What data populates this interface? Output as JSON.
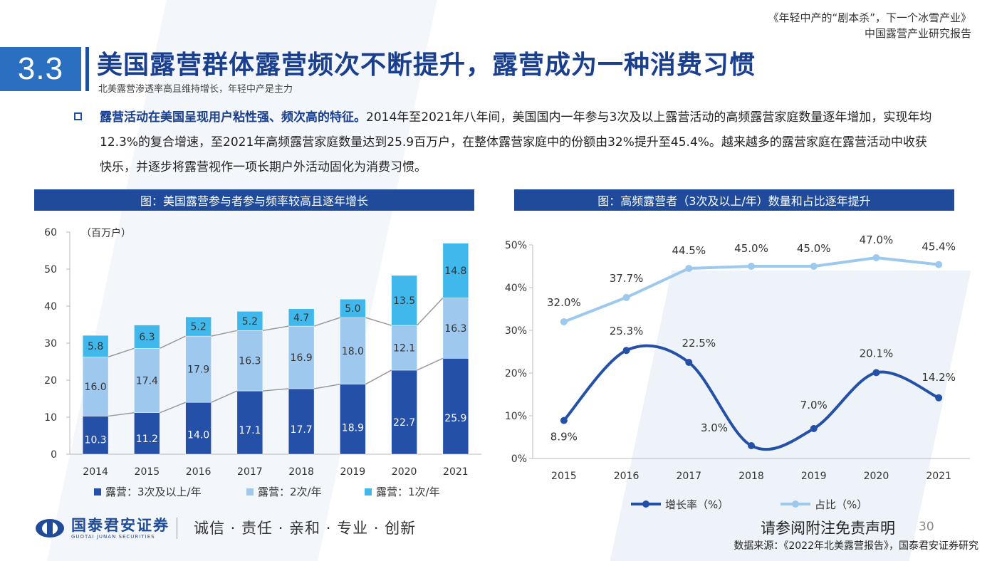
{
  "header": {
    "report_line1": "《年轻中产的“剧本杀”，下一个冰雪产业》",
    "report_line2": "中国露营产业研究报告"
  },
  "section_number": "3.3",
  "title": "美国露营群体露营频次不断提升，露营成为一种消费习惯",
  "subtitle": "北美露营渗透率高且维持增长，年轻中产是主力",
  "paragraph": {
    "emphasis": "露营活动在美国呈现用户粘性强、频次高的特征。",
    "body": "2014年至2021年八年间，美国国内一年参与3次及以上露营活动的高频露营家庭数量逐年增加，实现年均12.3%的复合增速，至2021年高频露营家庭数量达到25.9百万户，在整体露营家庭中的份额由32%提升至45.4%。越来越多的露营家庭在露营活动中收获快乐，并逐步将露营视作一项长期户外活动固化为消费习惯。"
  },
  "colors": {
    "brand_blue": "#1f4b9a",
    "series_dark": "#2550a8",
    "series_mid": "#9fc8ee",
    "series_light": "#40b8ec",
    "line_light": "#9ec9ee"
  },
  "chart_data": [
    {
      "type": "bar",
      "stacked": true,
      "title": "图：美国露营参与者参与频率较高且逐年增长",
      "unit_label": "（百万户）",
      "categories": [
        "2014",
        "2015",
        "2016",
        "2017",
        "2018",
        "2019",
        "2020",
        "2021"
      ],
      "series": [
        {
          "name": "露营：3次及以上/年",
          "values": [
            10.3,
            11.2,
            14.0,
            17.1,
            17.7,
            18.9,
            22.7,
            25.9
          ],
          "labels": [
            "10.3",
            "11.2",
            "14.0",
            "17.1",
            "17.7",
            "18.9",
            "22.7",
            "25.9"
          ]
        },
        {
          "name": "露营：2次/年",
          "values": [
            16.0,
            17.4,
            17.9,
            16.3,
            16.9,
            18.0,
            12.1,
            16.3
          ],
          "labels": [
            "16.0",
            "17.4",
            "17.9",
            "16.3",
            "16.9",
            "18.0",
            "12.1",
            "16.3"
          ]
        },
        {
          "name": "露营：1次/年",
          "values": [
            5.8,
            6.3,
            5.2,
            5.2,
            4.7,
            5.0,
            13.5,
            14.8
          ],
          "labels": [
            "5.8",
            "6.3",
            "5.2",
            "5.2",
            "4.7",
            "5.0",
            "13.5",
            "14.8"
          ]
        }
      ],
      "ylim": [
        0,
        60
      ],
      "yticks": [
        "0",
        "10",
        "20",
        "30",
        "40",
        "50",
        "60"
      ],
      "legend_position": "bottom"
    },
    {
      "type": "line",
      "title": "图：高频露营者（3次及以上/年）数量和占比逐年提升",
      "categories": [
        "2015",
        "2016",
        "2017",
        "2018",
        "2019",
        "2020",
        "2021"
      ],
      "series": [
        {
          "name": "增长率（%）",
          "values": [
            8.9,
            25.3,
            22.5,
            3.0,
            7.0,
            20.1,
            14.2
          ],
          "labels": [
            "8.9%",
            "25.3%",
            "22.5%",
            "3.0%",
            "7.0%",
            "20.1%",
            "14.2%"
          ]
        },
        {
          "name": "占比（%）",
          "values": [
            32.0,
            37.7,
            44.5,
            45.0,
            45.0,
            47.0,
            45.4
          ],
          "labels": [
            "32.0%",
            "37.7%",
            "44.5%",
            "45.0%",
            "45.0%",
            "47.0%",
            "45.4%"
          ]
        }
      ],
      "ylim": [
        0,
        50
      ],
      "yticks": [
        "0%",
        "10%",
        "20%",
        "30%",
        "40%",
        "50%"
      ],
      "legend_position": "bottom"
    }
  ],
  "footer": {
    "company": "国泰君安证券",
    "company_en": "GUOTAI JUNAN SECURITIES",
    "slogan": "诚信 · 责任 · 亲和 · 专业 · 创新",
    "disclaimer": "请参阅附注免责声明",
    "page_number": "30",
    "source": "数据来源：《2022年北美露营报告》，国泰君安证券研究"
  }
}
